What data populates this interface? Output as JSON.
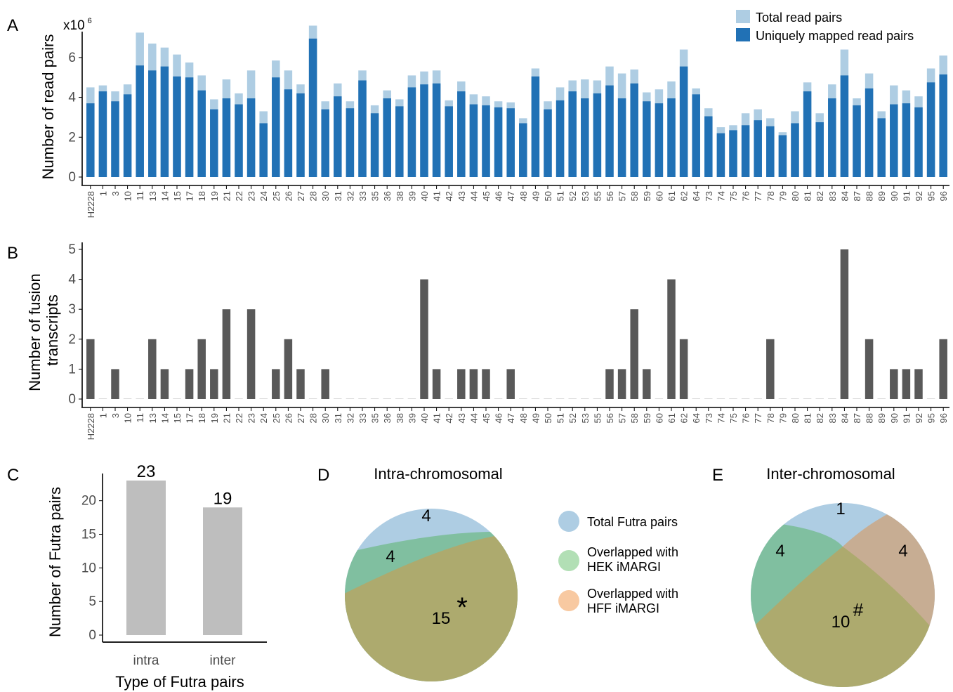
{
  "panels": {
    "A": {
      "letter": "A"
    },
    "B": {
      "letter": "B"
    },
    "C": {
      "letter": "C"
    },
    "D": {
      "letter": "D"
    },
    "E": {
      "letter": "E"
    }
  },
  "colors": {
    "total_read_pairs": "#aecde3",
    "uniquely_mapped": "#2171b5",
    "fusion_bar": "#595959",
    "futra_bar": "#bebebe",
    "venn_total": "#aecde3",
    "venn_hek": "#80bfa0",
    "venn_hff": "#c7ad93",
    "venn_overlap": "#adaa6e",
    "legend_hek": "#b2dfb5",
    "legend_hff": "#f8c9a1",
    "axis": "#000000",
    "tick_text": "#4d4d4d"
  },
  "chart_data": [
    {
      "panel": "A",
      "type": "bar",
      "stacked_overlay": true,
      "ylabel": "Number of read pairs",
      "y_multiplier_label": "x10",
      "y_multiplier_exp": "6",
      "ylim": [
        0,
        7.3
      ],
      "yticks": [
        0,
        2,
        4,
        6
      ],
      "legend_position": "top-right",
      "categories": [
        "H2228",
        "1",
        "3",
        "10",
        "11",
        "13",
        "14",
        "15",
        "17",
        "18",
        "19",
        "21",
        "22",
        "23",
        "24",
        "25",
        "26",
        "27",
        "28",
        "30",
        "31",
        "32",
        "33",
        "35",
        "36",
        "38",
        "39",
        "40",
        "41",
        "42",
        "43",
        "44",
        "45",
        "46",
        "47",
        "48",
        "49",
        "50",
        "51",
        "52",
        "53",
        "55",
        "56",
        "57",
        "58",
        "59",
        "60",
        "61",
        "62",
        "64",
        "73",
        "74",
        "75",
        "76",
        "77",
        "78",
        "79",
        "80",
        "81",
        "82",
        "83",
        "84",
        "87",
        "88",
        "89",
        "90",
        "91",
        "92",
        "95",
        "96"
      ],
      "series": [
        {
          "name": "Total read pairs",
          "values": [
            4.5,
            4.6,
            4.3,
            4.65,
            7.25,
            6.7,
            6.5,
            6.15,
            5.75,
            5.1,
            3.9,
            4.9,
            4.2,
            5.35,
            3.3,
            5.85,
            5.35,
            4.65,
            7.6,
            3.8,
            4.7,
            3.8,
            5.35,
            3.6,
            4.35,
            3.9,
            5.1,
            5.3,
            5.35,
            3.85,
            4.8,
            4.15,
            4.05,
            3.8,
            3.75,
            2.95,
            5.45,
            3.8,
            4.5,
            4.85,
            4.9,
            4.85,
            5.55,
            5.2,
            5.4,
            4.25,
            4.4,
            4.8,
            6.4,
            4.45,
            3.45,
            2.5,
            2.6,
            3.2,
            3.4,
            2.95,
            2.25,
            3.3,
            4.75,
            3.2,
            4.65,
            6.4,
            3.95,
            5.2,
            3.3,
            4.6,
            4.35,
            4.05,
            5.45,
            6.1
          ]
        },
        {
          "name": "Uniquely mapped read pairs",
          "values": [
            3.7,
            4.3,
            3.8,
            4.15,
            5.6,
            5.35,
            5.55,
            5.05,
            5.0,
            4.35,
            3.4,
            3.95,
            3.65,
            3.95,
            2.7,
            5.0,
            4.4,
            4.2,
            6.95,
            3.4,
            4.05,
            3.45,
            4.85,
            3.2,
            3.95,
            3.55,
            4.5,
            4.65,
            4.7,
            3.55,
            4.3,
            3.65,
            3.6,
            3.5,
            3.45,
            2.7,
            5.05,
            3.4,
            3.85,
            4.3,
            3.95,
            4.2,
            4.6,
            3.95,
            4.7,
            3.8,
            3.7,
            3.95,
            5.55,
            4.15,
            3.05,
            2.2,
            2.35,
            2.6,
            2.85,
            2.55,
            2.1,
            2.7,
            4.3,
            2.75,
            3.95,
            5.1,
            3.6,
            4.45,
            2.95,
            3.65,
            3.7,
            3.5,
            4.75,
            5.15
          ]
        }
      ]
    },
    {
      "panel": "B",
      "type": "bar",
      "ylabel_line1": "Number of fusion",
      "ylabel_line2": "transcripts",
      "ylim": [
        0,
        5
      ],
      "yticks": [
        0,
        1,
        2,
        3,
        4,
        5
      ],
      "categories": [
        "H2228",
        "1",
        "3",
        "10",
        "11",
        "13",
        "14",
        "15",
        "17",
        "18",
        "19",
        "21",
        "22",
        "23",
        "24",
        "25",
        "26",
        "27",
        "28",
        "30",
        "31",
        "32",
        "33",
        "35",
        "36",
        "38",
        "39",
        "40",
        "41",
        "42",
        "43",
        "44",
        "45",
        "46",
        "47",
        "48",
        "49",
        "50",
        "51",
        "52",
        "53",
        "55",
        "56",
        "57",
        "58",
        "59",
        "60",
        "61",
        "62",
        "64",
        "73",
        "74",
        "75",
        "76",
        "77",
        "78",
        "79",
        "80",
        "81",
        "82",
        "83",
        "84",
        "87",
        "88",
        "89",
        "90",
        "91",
        "92",
        "95",
        "96"
      ],
      "values": [
        2,
        0,
        1,
        0,
        0,
        2,
        1,
        0,
        1,
        2,
        1,
        3,
        0,
        3,
        0,
        1,
        2,
        1,
        0,
        1,
        0,
        0,
        0,
        0,
        0,
        0,
        0,
        4,
        1,
        0,
        1,
        1,
        1,
        0,
        1,
        0,
        0,
        0,
        0,
        0,
        0,
        0,
        1,
        1,
        3,
        1,
        0,
        4,
        2,
        0,
        0,
        0,
        0,
        0,
        0,
        2,
        0,
        0,
        0,
        0,
        0,
        5,
        0,
        2,
        0,
        1,
        1,
        1,
        0,
        2
      ]
    },
    {
      "panel": "C",
      "type": "bar",
      "ylabel": "Number of Futra pairs",
      "xlabel": "Type of Futra pairs",
      "ylim": [
        0,
        23.5
      ],
      "yticks": [
        0,
        5,
        10,
        15,
        20
      ],
      "categories": [
        "intra",
        "inter"
      ],
      "values": [
        23,
        19
      ],
      "value_labels": [
        "23",
        "19"
      ]
    }
  ],
  "venn_D": {
    "title": "Intra-chromosomal",
    "labels": {
      "total_only": "4",
      "hek": "4",
      "overlap": "15",
      "overlap_mark": "*"
    }
  },
  "venn_E": {
    "title": "Inter-chromosomal",
    "labels": {
      "total_only": "1",
      "hek": "4",
      "hff": "4",
      "overlap": "10",
      "overlap_mark": "#"
    }
  },
  "venn_legend": {
    "items": [
      {
        "line1": "Total Futra pairs",
        "line2": "",
        "color_key": "venn_total"
      },
      {
        "line1": "Overlapped with",
        "line2": "HEK iMARGI",
        "color_key": "legend_hek"
      },
      {
        "line1": "Overlapped with",
        "line2": "HFF iMARGI",
        "color_key": "legend_hff"
      }
    ]
  }
}
